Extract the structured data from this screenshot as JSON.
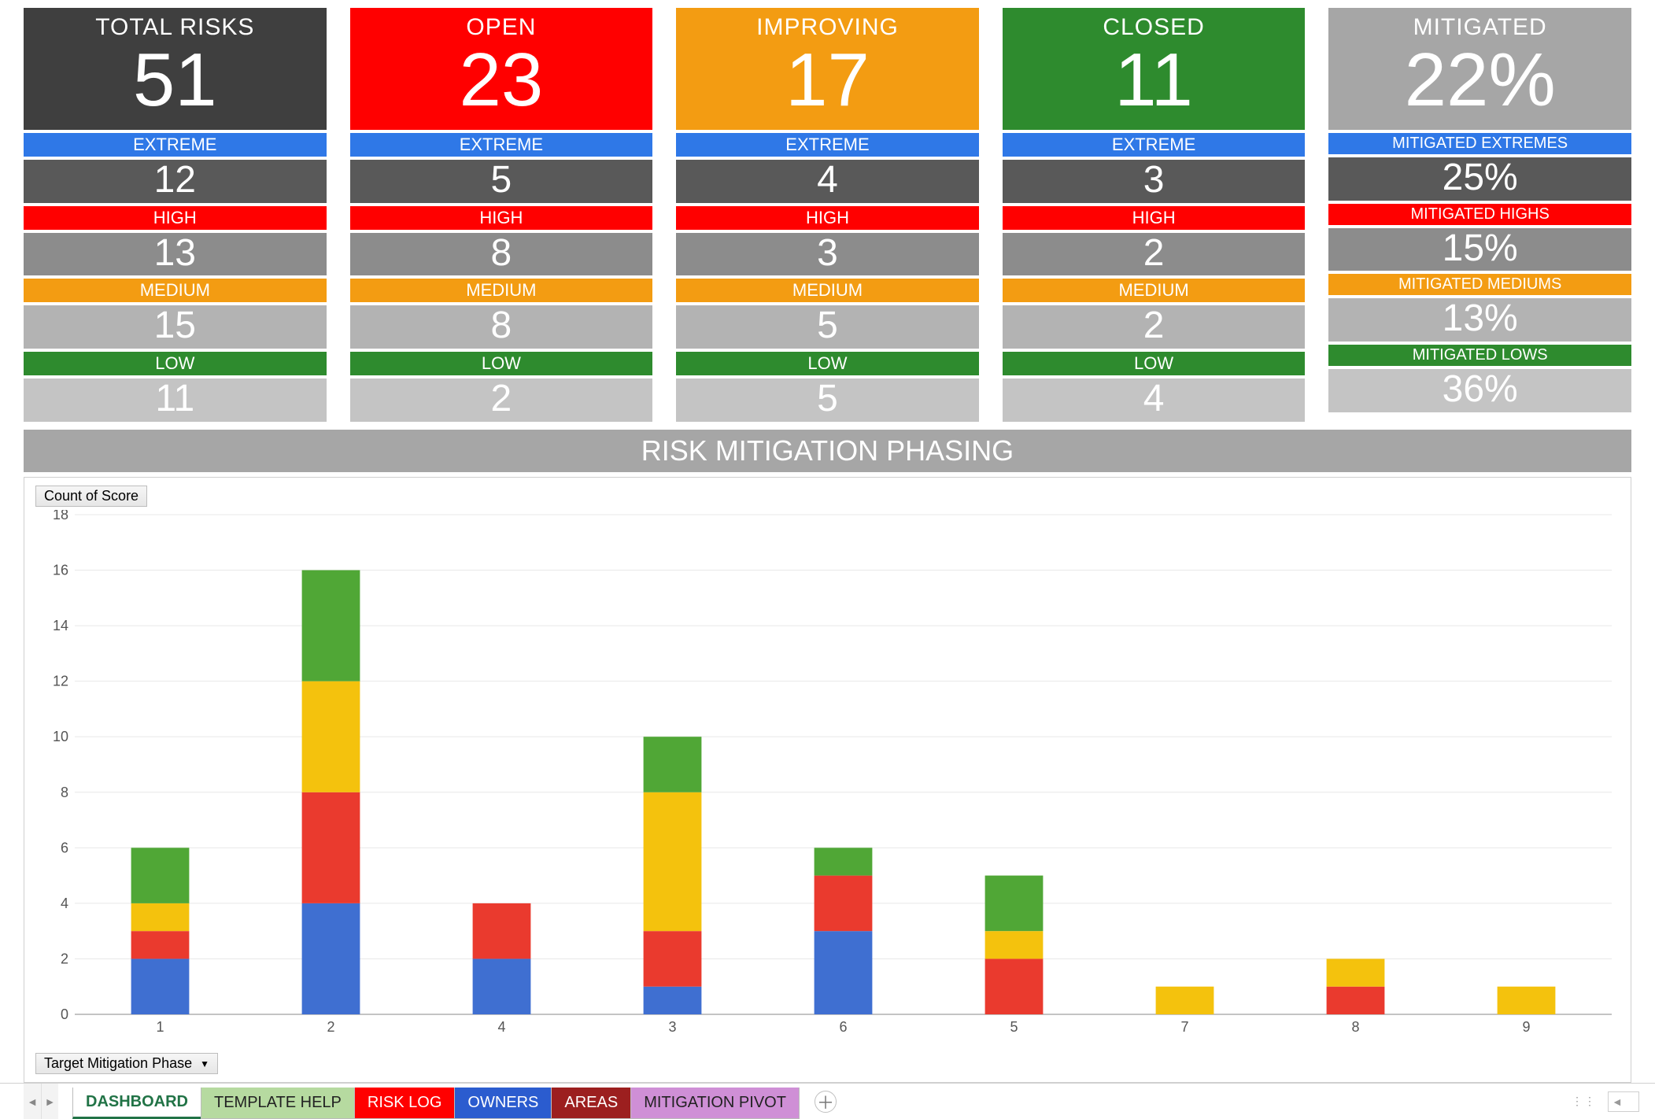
{
  "colors": {
    "dark": "#3f3f3f",
    "red": "#ff0000",
    "orange": "#f39c12",
    "green": "#2e8b2e",
    "grey": "#a6a6a6",
    "blue": "#2f78e7",
    "midgrey": "#595959",
    "ltgrey1": "#8c8c8c",
    "ltgrey2": "#b3b3b3",
    "ltgrey3": "#c4c4c4",
    "secthdr": "#a6a6a6",
    "darkred": "#9c1f1f",
    "owners_blue": "#2b5ccf",
    "template_green": "#b6daa0",
    "purple": "#cf8fd6",
    "chart_blue": "#3f6fd1",
    "chart_red": "#ea3a2e",
    "chart_yellow": "#f4c20d",
    "chart_green": "#50a736",
    "grid": "#e8e8e8",
    "axis": "#b0b0b0"
  },
  "summary": [
    {
      "label": "TOTAL RISKS",
      "value": "51",
      "bg_key": "dark"
    },
    {
      "label": "OPEN",
      "value": "23",
      "bg_key": "red"
    },
    {
      "label": "IMPROVING",
      "value": "17",
      "bg_key": "orange"
    },
    {
      "label": "CLOSED",
      "value": "11",
      "bg_key": "green"
    },
    {
      "label": "MITIGATED",
      "value": "22%",
      "bg_key": "grey"
    }
  ],
  "breakdown_row_labels": {
    "extreme": [
      "EXTREME",
      "EXTREME",
      "EXTREME",
      "EXTREME",
      "MITIGATED EXTREMES"
    ],
    "high": [
      "HIGH",
      "HIGH",
      "HIGH",
      "HIGH",
      "MITIGATED HIGHS"
    ],
    "medium": [
      "MEDIUM",
      "MEDIUM",
      "MEDIUM",
      "MEDIUM",
      "MITIGATED MEDIUMS"
    ],
    "low": [
      "LOW",
      "LOW",
      "LOW",
      "LOW",
      "MITIGATED LOWS"
    ]
  },
  "breakdown_values": {
    "extreme": [
      "12",
      "5",
      "4",
      "3",
      "25%"
    ],
    "high": [
      "13",
      "8",
      "3",
      "2",
      "15%"
    ],
    "medium": [
      "15",
      "8",
      "5",
      "2",
      "13%"
    ],
    "low": [
      "11",
      "2",
      "5",
      "4",
      "36%"
    ]
  },
  "breakdown_label_bg": {
    "extreme": "blue",
    "high": "red",
    "medium": "orange",
    "low": "green"
  },
  "breakdown_value_bg": {
    "extreme": "midgrey",
    "high": "ltgrey1",
    "medium": "ltgrey2",
    "low": "ltgrey3"
  },
  "section_title": "RISK MITIGATION PHASING",
  "chart": {
    "count_button": "Count of Score",
    "filter_button": "Target Mitigation Phase",
    "y": {
      "min": 0,
      "max": 18,
      "step": 2,
      "fontsize": 18
    },
    "categories": [
      "1",
      "2",
      "4",
      "3",
      "6",
      "5",
      "7",
      "8",
      "9"
    ],
    "series_order": [
      "blue",
      "red",
      "yellow",
      "green"
    ],
    "series_colors": {
      "blue": "chart_blue",
      "red": "chart_red",
      "yellow": "chart_yellow",
      "green": "chart_green"
    },
    "stacks": [
      {
        "blue": 2,
        "red": 1,
        "yellow": 1,
        "green": 2
      },
      {
        "blue": 4,
        "red": 4,
        "yellow": 4,
        "green": 4
      },
      {
        "blue": 2,
        "red": 2,
        "yellow": 0,
        "green": 0
      },
      {
        "blue": 1,
        "red": 2,
        "yellow": 5,
        "green": 2
      },
      {
        "blue": 3,
        "red": 2,
        "yellow": 0,
        "green": 1
      },
      {
        "blue": 0,
        "red": 2,
        "yellow": 1,
        "green": 2
      },
      {
        "blue": 0,
        "red": 0,
        "yellow": 1,
        "green": 0
      },
      {
        "blue": 0,
        "red": 1,
        "yellow": 1,
        "green": 0
      },
      {
        "blue": 0,
        "red": 0,
        "yellow": 1,
        "green": 0
      }
    ],
    "bar_group_width_ratio": 0.34
  },
  "tabs": [
    {
      "label": "DASHBOARD",
      "bg": "#ffffff",
      "fg": "#217346",
      "active": true
    },
    {
      "label": "TEMPLATE HELP",
      "bg_key": "template_green",
      "fg": "#222222"
    },
    {
      "label": "RISK LOG",
      "bg_key": "red",
      "fg": "#ffffff"
    },
    {
      "label": "OWNERS",
      "bg_key": "owners_blue",
      "fg": "#ffffff"
    },
    {
      "label": "AREAS",
      "bg_key": "darkred",
      "fg": "#ffffff"
    },
    {
      "label": "MITIGATION PIVOT",
      "bg_key": "purple",
      "fg": "#222222"
    }
  ]
}
